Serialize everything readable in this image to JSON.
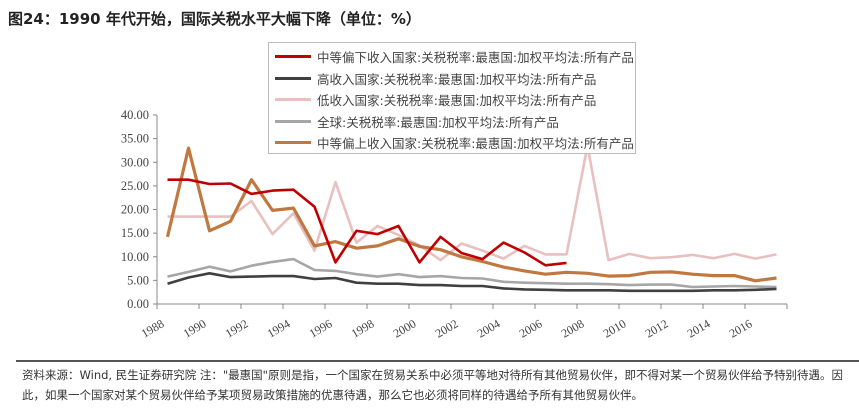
{
  "title": "图24：1990 年代开始，国际关税水平大幅下降（单位：%）",
  "note": "资料来源：Wind, 民生证券研究院   注：\"最惠国\"原则是指，一个国家在贸易关系中必须平等地对待所有其他贸易伙伴，即不得对某一个贸易伙伴给予特别待遇。因此，如果一个国家对某个贸易伙伴给予某项贸易政策措施的优惠待遇，那么它也必须将同样的待遇给予所有其他贸易伙伴。",
  "chart_data": {
    "type": "line",
    "title": "",
    "x": [
      1988,
      1989,
      1990,
      1991,
      1992,
      1993,
      1994,
      1995,
      1996,
      1997,
      1998,
      1999,
      2000,
      2001,
      2002,
      2003,
      2004,
      2005,
      2006,
      2007,
      2008,
      2009,
      2010,
      2011,
      2012,
      2013,
      2014,
      2015,
      2016,
      2017
    ],
    "xticks": [
      "1988",
      "1990",
      "1992",
      "1994",
      "1996",
      "1998",
      "2000",
      "2002",
      "2004",
      "2006",
      "2008",
      "2010",
      "2012",
      "2014",
      "2016"
    ],
    "ylim": [
      0,
      40
    ],
    "yticks": [
      "0.00",
      "5.00",
      "10.00",
      "15.00",
      "20.00",
      "25.00",
      "30.00",
      "35.00",
      "40.00"
    ],
    "legend_position": "top-center",
    "grid": false,
    "series": [
      {
        "name": "中等偏下收入国家:关税税率:最惠国:加权平均法:所有产品",
        "color": "#c00000",
        "values": [
          26.3,
          26.3,
          25.4,
          25.5,
          23.3,
          24.0,
          24.2,
          20.6,
          8.8,
          15.5,
          14.8,
          16.5,
          8.8,
          14.2,
          10.8,
          9.5,
          13.0,
          10.9,
          8.2,
          8.7,
          null,
          null,
          null,
          null,
          null,
          null,
          null,
          null,
          null,
          null
        ]
      },
      {
        "name": "高收入国家:关税税率:最惠国:加权平均法:所有产品",
        "color": "#404040",
        "values": [
          4.3,
          5.6,
          6.5,
          5.7,
          5.8,
          5.9,
          5.9,
          5.3,
          5.5,
          4.5,
          4.3,
          4.3,
          4.0,
          4.0,
          3.8,
          3.8,
          3.3,
          3.1,
          3.0,
          2.9,
          2.9,
          2.9,
          2.8,
          2.8,
          2.8,
          2.8,
          2.9,
          2.9,
          3.0,
          3.2
        ]
      },
      {
        "name": "低收入国家:关税税率:最惠国:加权平均法:所有产品",
        "color": "#e8c0c0",
        "values": [
          18.5,
          18.5,
          18.5,
          18.5,
          21.8,
          14.8,
          19.2,
          11.3,
          25.8,
          13.0,
          16.5,
          14.6,
          12.4,
          9.3,
          12.8,
          11.3,
          9.6,
          12.3,
          10.5,
          10.5,
          33.5,
          9.3,
          10.6,
          9.7,
          9.9,
          10.4,
          9.7,
          10.6,
          9.6,
          10.5
        ]
      },
      {
        "name": "全球:关税税率:最惠国:加权平均法:所有产品",
        "color": "#a6a6a6",
        "values": [
          5.8,
          6.8,
          7.9,
          6.9,
          8.1,
          8.9,
          9.5,
          7.2,
          7.0,
          6.3,
          5.8,
          6.3,
          5.7,
          5.9,
          5.5,
          5.4,
          4.7,
          4.5,
          4.4,
          4.3,
          4.3,
          4.2,
          4.0,
          4.1,
          4.1,
          3.6,
          3.7,
          3.8,
          3.7,
          3.6
        ]
      },
      {
        "name": "中等偏上收入国家:关税税率:最惠国:加权平均法:所有产品",
        "color": "#c07840",
        "values": [
          14.2,
          33.0,
          15.5,
          17.5,
          26.3,
          19.8,
          20.3,
          12.3,
          13.2,
          11.8,
          12.3,
          13.8,
          12.2,
          11.5,
          10.0,
          9.0,
          7.8,
          7.0,
          6.3,
          6.7,
          6.5,
          5.9,
          6.0,
          6.7,
          6.8,
          6.3,
          6.0,
          6.0,
          4.9,
          5.5
        ]
      }
    ]
  }
}
